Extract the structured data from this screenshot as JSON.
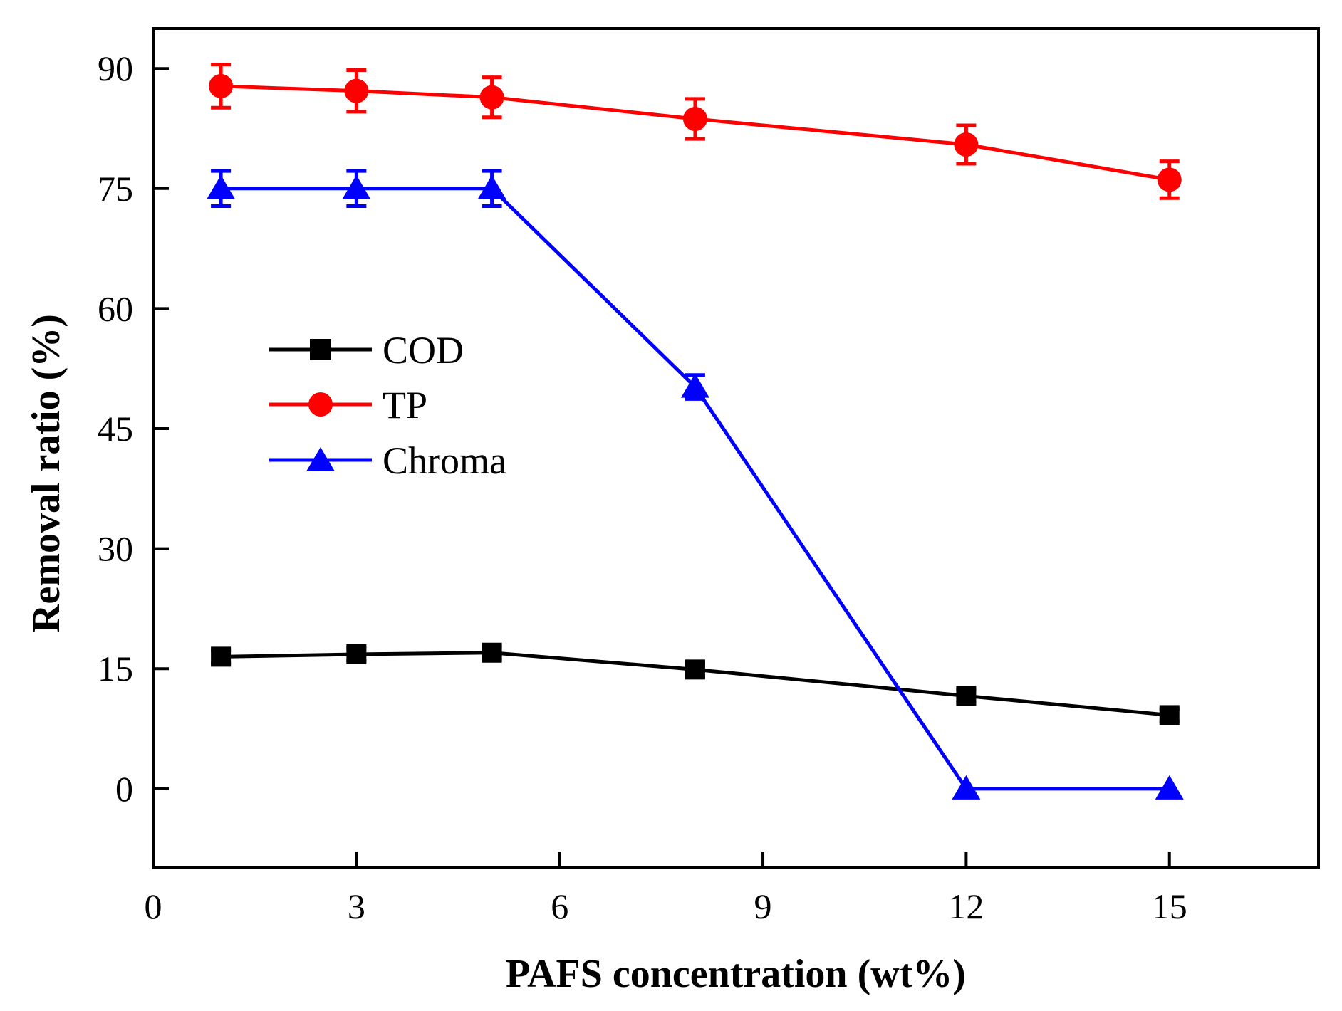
{
  "chart_data": {
    "type": "line",
    "title": "",
    "xlabel": "PAFS concentration (wt%)",
    "ylabel": "Removal ratio (%)",
    "xlim": [
      0,
      17.2
    ],
    "ylim": [
      -9.8,
      95
    ],
    "xticks": [
      0,
      3,
      6,
      9,
      12,
      15
    ],
    "xtick_labels": [
      "0",
      "3",
      "6",
      "9",
      "12",
      "15"
    ],
    "yticks": [
      0,
      15,
      30,
      45,
      60,
      75,
      90
    ],
    "ytick_labels": [
      "0",
      "15",
      "30",
      "45",
      "60",
      "75",
      "90"
    ],
    "grid": false,
    "legend_position": "center-left",
    "x": [
      1,
      3,
      5,
      8,
      12,
      15
    ],
    "series": [
      {
        "name": "COD",
        "color": "#000000",
        "marker": "square",
        "values": [
          16.5,
          16.8,
          17.0,
          14.9,
          11.6,
          9.2
        ],
        "errors": [
          0.8,
          0.8,
          0.8,
          0.8,
          0.8,
          0.8
        ]
      },
      {
        "name": "TP",
        "color": "#ff0000",
        "marker": "circle",
        "values": [
          87.8,
          87.2,
          86.4,
          83.7,
          80.5,
          76.1
        ],
        "errors": [
          2.7,
          2.6,
          2.5,
          2.5,
          2.4,
          2.3
        ]
      },
      {
        "name": "Chroma",
        "color": "#0000ff",
        "marker": "triangle",
        "values": [
          75.0,
          75.0,
          75.0,
          50.2,
          0.0,
          0.0
        ],
        "errors": [
          2.2,
          2.2,
          2.2,
          1.5,
          0.0,
          0.0
        ]
      }
    ]
  }
}
